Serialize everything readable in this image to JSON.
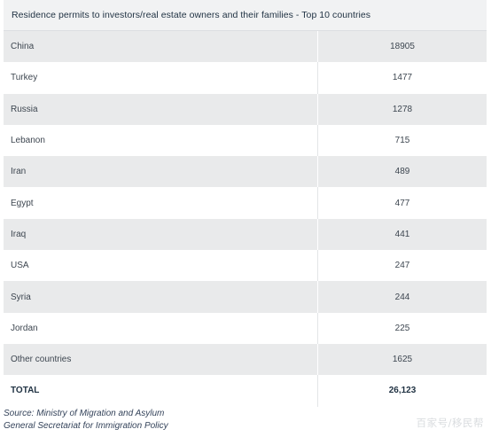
{
  "table": {
    "title": "Residence permits to investors/real estate owners and their families - Top 10 countries",
    "rows": [
      {
        "country": "China",
        "value": "18905"
      },
      {
        "country": "Turkey",
        "value": "1477"
      },
      {
        "country": "Russia",
        "value": "1278"
      },
      {
        "country": "Lebanon",
        "value": "715"
      },
      {
        "country": "Iran",
        "value": "489"
      },
      {
        "country": "Egypt",
        "value": "477"
      },
      {
        "country": "Iraq",
        "value": "441"
      },
      {
        "country": "USA",
        "value": "247"
      },
      {
        "country": "Syria",
        "value": "244"
      },
      {
        "country": "Jordan",
        "value": "225"
      },
      {
        "country": "Other countries",
        "value": "1625"
      }
    ],
    "total": {
      "label": "TOTAL",
      "value": "26,123"
    }
  },
  "source": {
    "line1": "Source: Ministry of Migration and Asylum",
    "line2": "General Secretariat for Immigration Policy"
  },
  "watermark": "百家号/移民帮"
}
